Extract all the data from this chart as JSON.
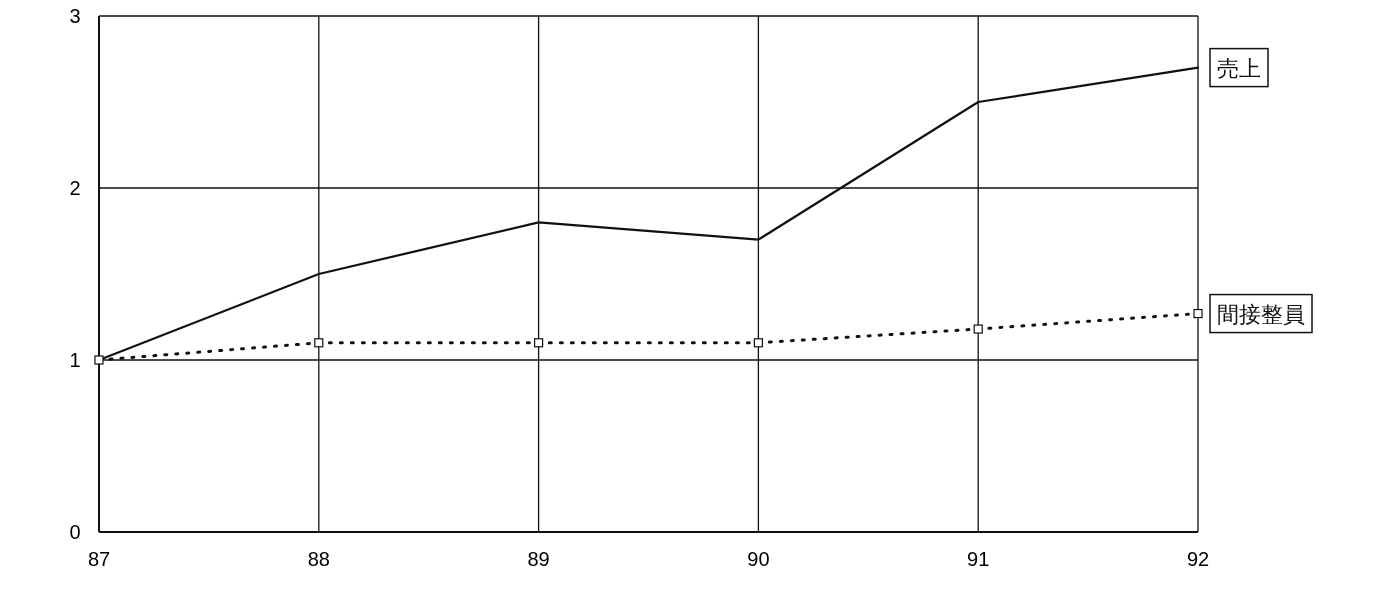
{
  "chart_data": {
    "type": "line",
    "x": [
      87,
      88,
      89,
      90,
      91,
      92
    ],
    "xlim": [
      87,
      92
    ],
    "xticks": [
      87,
      88,
      89,
      90,
      91,
      92
    ],
    "ylim": [
      0,
      3
    ],
    "yticks": [
      0,
      1,
      2,
      3
    ],
    "grid": true,
    "legend": "right",
    "series": [
      {
        "name": "売上",
        "color": "#111111",
        "values": [
          1.0,
          1.5,
          1.8,
          1.7,
          2.5,
          2.7
        ],
        "line_style": "solid",
        "marker": "none"
      },
      {
        "name": "間接整員",
        "color": "#111111",
        "values": [
          1.0,
          1.1,
          1.1,
          1.1,
          1.18,
          1.27
        ],
        "line_style": "dotted",
        "marker": "square"
      }
    ]
  }
}
